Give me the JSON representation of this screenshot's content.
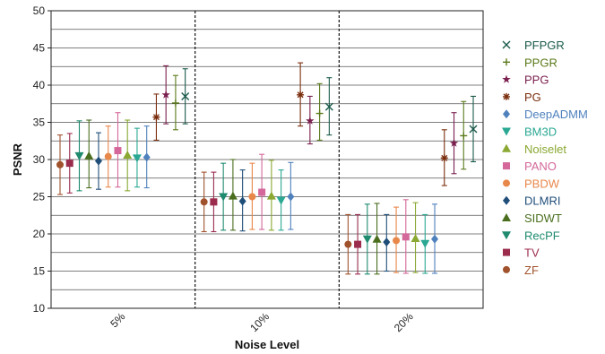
{
  "chart_data": {
    "type": "scatter",
    "xlabel": "Noise Level",
    "ylabel": "PSNR",
    "ylim": [
      10,
      50
    ],
    "yticks": [
      10,
      15,
      20,
      25,
      30,
      35,
      40,
      45,
      50
    ],
    "categories": [
      "5%",
      "10%",
      "20%"
    ],
    "grid": "horizontal",
    "legend_position": "right",
    "error_bars": true,
    "series": [
      {
        "name": "ZF",
        "color": "#a0522d",
        "marker": "circle",
        "data": [
          {
            "x": "5%",
            "y": 29.3,
            "low": 25.3,
            "high": 33.3
          },
          {
            "x": "10%",
            "y": 24.3,
            "low": 20.3,
            "high": 28.3
          },
          {
            "x": "20%",
            "y": 18.6,
            "low": 14.6,
            "high": 22.6
          }
        ]
      },
      {
        "name": "TV",
        "color": "#9b2c4e",
        "marker": "square",
        "data": [
          {
            "x": "5%",
            "y": 29.5,
            "low": 25.5,
            "high": 33.5
          },
          {
            "x": "10%",
            "y": 24.3,
            "low": 20.3,
            "high": 28.3
          },
          {
            "x": "20%",
            "y": 18.6,
            "low": 14.6,
            "high": 22.6
          }
        ]
      },
      {
        "name": "RecPF",
        "color": "#1e8a6e",
        "marker": "triangle-down",
        "data": [
          {
            "x": "5%",
            "y": 30.5,
            "low": 25.8,
            "high": 35.2
          },
          {
            "x": "10%",
            "y": 25.0,
            "low": 20.5,
            "high": 29.5
          },
          {
            "x": "20%",
            "y": 19.3,
            "low": 14.6,
            "high": 24.0
          }
        ]
      },
      {
        "name": "SIDWT",
        "color": "#4a6e1e",
        "marker": "triangle-up",
        "data": [
          {
            "x": "5%",
            "y": 30.5,
            "low": 26.2,
            "high": 35.3
          },
          {
            "x": "10%",
            "y": 25.1,
            "low": 20.5,
            "high": 30.0
          },
          {
            "x": "20%",
            "y": 19.3,
            "low": 14.6,
            "high": 24.1
          }
        ]
      },
      {
        "name": "DLMRI",
        "color": "#1f4e79",
        "marker": "diamond",
        "data": [
          {
            "x": "5%",
            "y": 29.8,
            "low": 26.0,
            "high": 33.6
          },
          {
            "x": "10%",
            "y": 24.4,
            "low": 20.4,
            "high": 28.6
          },
          {
            "x": "20%",
            "y": 18.9,
            "low": 15.0,
            "high": 22.6
          }
        ]
      },
      {
        "name": "PBDW",
        "color": "#e8874a",
        "marker": "circle",
        "data": [
          {
            "x": "5%",
            "y": 30.4,
            "low": 26.3,
            "high": 34.5
          },
          {
            "x": "10%",
            "y": 25.0,
            "low": 20.6,
            "high": 29.5
          },
          {
            "x": "20%",
            "y": 19.1,
            "low": 14.8,
            "high": 23.6
          }
        ]
      },
      {
        "name": "PANO",
        "color": "#d4689a",
        "marker": "square",
        "data": [
          {
            "x": "5%",
            "y": 31.2,
            "low": 26.3,
            "high": 36.3
          },
          {
            "x": "10%",
            "y": 25.6,
            "low": 20.6,
            "high": 30.7
          },
          {
            "x": "20%",
            "y": 19.6,
            "low": 14.7,
            "high": 24.6
          }
        ]
      },
      {
        "name": "Noiselet",
        "color": "#8aa832",
        "marker": "triangle-up",
        "data": [
          {
            "x": "5%",
            "y": 30.6,
            "low": 25.8,
            "high": 35.3
          },
          {
            "x": "10%",
            "y": 25.1,
            "low": 20.5,
            "high": 29.9
          },
          {
            "x": "20%",
            "y": 19.4,
            "low": 14.8,
            "high": 24.2
          }
        ]
      },
      {
        "name": "BM3D",
        "color": "#2aa893",
        "marker": "triangle-down",
        "data": [
          {
            "x": "5%",
            "y": 30.2,
            "low": 26.3,
            "high": 34.2
          },
          {
            "x": "10%",
            "y": 24.5,
            "low": 20.5,
            "high": 28.6
          },
          {
            "x": "20%",
            "y": 18.7,
            "low": 14.7,
            "high": 22.6
          }
        ]
      },
      {
        "name": "DeepADMM",
        "color": "#4f81bd",
        "marker": "diamond",
        "data": [
          {
            "x": "5%",
            "y": 30.3,
            "low": 26.2,
            "high": 34.5
          },
          {
            "x": "10%",
            "y": 25.0,
            "low": 20.6,
            "high": 29.6
          },
          {
            "x": "20%",
            "y": 19.3,
            "low": 14.7,
            "high": 24.0
          }
        ]
      },
      {
        "name": "PG",
        "color": "#7b2e0e",
        "marker": "asterisk",
        "data": [
          {
            "x": "5%",
            "y": 35.7,
            "low": 32.6,
            "high": 38.8
          },
          {
            "x": "10%",
            "y": 38.7,
            "low": 34.5,
            "high": 43.0
          },
          {
            "x": "20%",
            "y": 30.2,
            "low": 26.5,
            "high": 34.0
          }
        ]
      },
      {
        "name": "PPG",
        "color": "#7a1f4e",
        "marker": "star",
        "data": [
          {
            "x": "5%",
            "y": 38.7,
            "low": 34.8,
            "high": 42.6
          },
          {
            "x": "10%",
            "y": 35.2,
            "low": 32.1,
            "high": 38.5
          },
          {
            "x": "20%",
            "y": 32.2,
            "low": 28.1,
            "high": 36.3
          }
        ]
      },
      {
        "name": "PPGR",
        "color": "#5a7a1a",
        "marker": "plus",
        "data": [
          {
            "x": "5%",
            "y": 37.6,
            "low": 34.0,
            "high": 41.3
          },
          {
            "x": "10%",
            "y": 36.2,
            "low": 32.6,
            "high": 40.2
          },
          {
            "x": "20%",
            "y": 33.2,
            "low": 28.7,
            "high": 37.8
          }
        ]
      },
      {
        "name": "PFPGR",
        "color": "#1a5a4a",
        "marker": "x",
        "data": [
          {
            "x": "5%",
            "y": 38.5,
            "low": 34.8,
            "high": 42.2
          },
          {
            "x": "10%",
            "y": 37.1,
            "low": 33.3,
            "high": 41.0
          },
          {
            "x": "20%",
            "y": 34.1,
            "low": 29.7,
            "high": 38.5
          }
        ]
      }
    ]
  }
}
